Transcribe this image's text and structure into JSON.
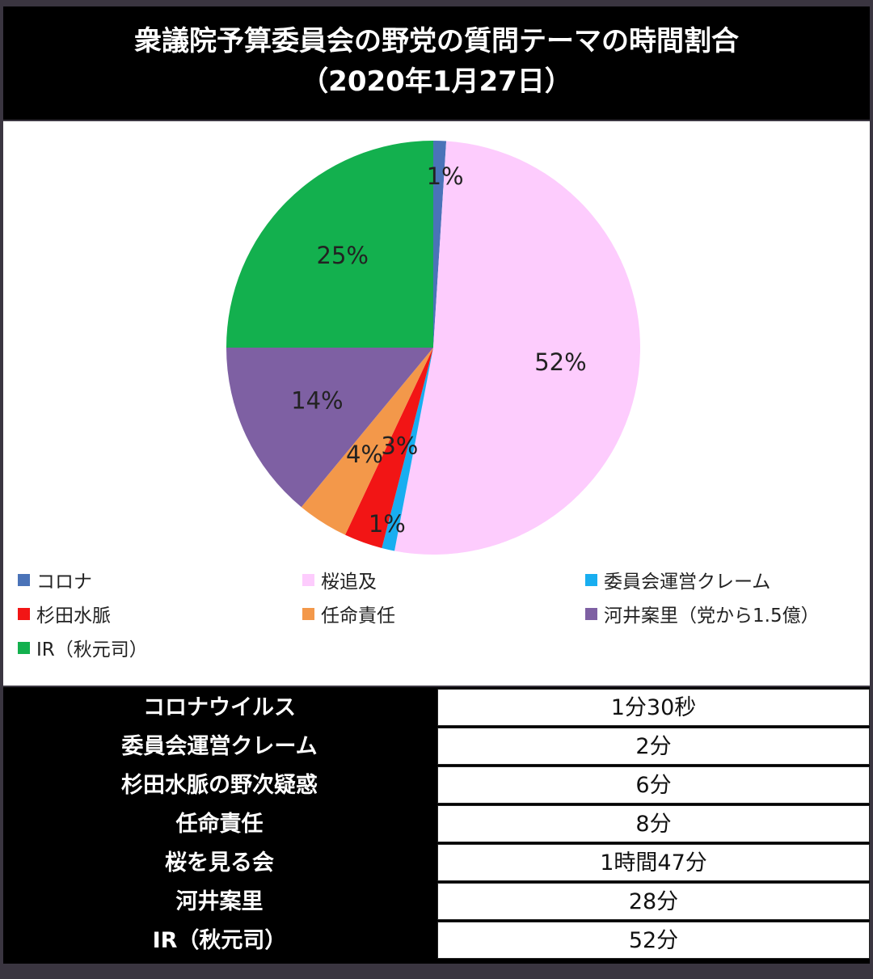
{
  "title_line1": "衆議院予算委員会の野党の質問テーマの時間割合",
  "title_line2": "（2020年1月27日）",
  "chart_data": {
    "type": "pie",
    "title": "衆議院予算委員会の野党の質問テーマの時間割合（2020年1月27日）",
    "categories": [
      "コロナ",
      "桜追及",
      "委員会運営クレーム",
      "杉田水脈",
      "任命責任",
      "河井案里（党から1.5億）",
      "IR（秋元司）"
    ],
    "values": [
      1,
      52,
      1,
      3,
      4,
      14,
      25
    ],
    "data_labels": [
      "1%",
      "52%",
      "1%",
      "3%",
      "4%",
      "14%",
      "25%"
    ],
    "colors": [
      "#4a73b8",
      "#fdccfd",
      "#18aef0",
      "#f21515",
      "#f3984a",
      "#7e60a3",
      "#13b04e"
    ],
    "legend_position": "bottom"
  },
  "table": {
    "rows": [
      {
        "label": "コロナウイルス",
        "value": "1分30秒"
      },
      {
        "label": "委員会運営クレーム",
        "value": "2分"
      },
      {
        "label": "杉田水脈の野次疑惑",
        "value": "6分"
      },
      {
        "label": "任命責任",
        "value": "8分"
      },
      {
        "label": "桜を見る会",
        "value": "1時間47分"
      },
      {
        "label": "河井案里",
        "value": "28分"
      },
      {
        "label": "IR（秋元司）",
        "value": "52分"
      }
    ]
  }
}
